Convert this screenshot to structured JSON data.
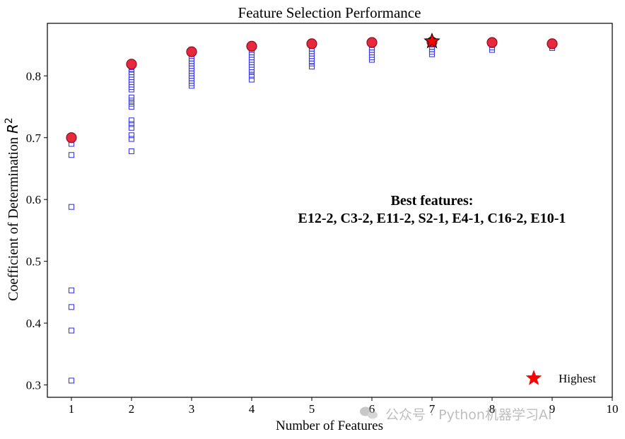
{
  "chart_data": {
    "type": "scatter",
    "title": "Feature Selection Performance",
    "xlabel": "Number of Features",
    "ylabel": "Coefficient of Determination R²",
    "ylabel_main": "Coefficient of Determination ",
    "ylabel_var": "R",
    "ylabel_sup": "2",
    "xlim": [
      0.6,
      10
    ],
    "ylim": [
      0.28,
      0.885
    ],
    "xticks": [
      1,
      2,
      3,
      4,
      5,
      6,
      7,
      8,
      9,
      10
    ],
    "yticks": [
      0.3,
      0.4,
      0.5,
      0.6,
      0.7,
      0.8
    ],
    "grid": false,
    "series": [
      {
        "marker": "hollow-square",
        "color": "#3b3bf0",
        "points": [
          [
            1,
            0.7
          ],
          [
            1,
            0.69
          ],
          [
            1,
            0.672
          ],
          [
            1,
            0.588
          ],
          [
            1,
            0.453
          ],
          [
            1,
            0.426
          ],
          [
            1,
            0.388
          ],
          [
            1,
            0.307
          ],
          [
            2,
            0.818
          ],
          [
            2,
            0.811
          ],
          [
            2,
            0.806
          ],
          [
            2,
            0.802
          ],
          [
            2,
            0.798
          ],
          [
            2,
            0.794
          ],
          [
            2,
            0.79
          ],
          [
            2,
            0.786
          ],
          [
            2,
            0.782
          ],
          [
            2,
            0.778
          ],
          [
            2,
            0.765
          ],
          [
            2,
            0.76
          ],
          [
            2,
            0.755
          ],
          [
            2,
            0.75
          ],
          [
            2,
            0.728
          ],
          [
            2,
            0.722
          ],
          [
            2,
            0.716
          ],
          [
            2,
            0.704
          ],
          [
            2,
            0.698
          ],
          [
            2,
            0.678
          ],
          [
            3,
            0.838
          ],
          [
            3,
            0.832
          ],
          [
            3,
            0.828
          ],
          [
            3,
            0.824
          ],
          [
            3,
            0.82
          ],
          [
            3,
            0.816
          ],
          [
            3,
            0.812
          ],
          [
            3,
            0.808
          ],
          [
            3,
            0.804
          ],
          [
            3,
            0.8
          ],
          [
            3,
            0.796
          ],
          [
            3,
            0.792
          ],
          [
            3,
            0.788
          ],
          [
            3,
            0.784
          ],
          [
            4,
            0.847
          ],
          [
            4,
            0.842
          ],
          [
            4,
            0.838
          ],
          [
            4,
            0.834
          ],
          [
            4,
            0.83
          ],
          [
            4,
            0.826
          ],
          [
            4,
            0.822
          ],
          [
            4,
            0.818
          ],
          [
            4,
            0.814
          ],
          [
            4,
            0.81
          ],
          [
            4,
            0.806
          ],
          [
            4,
            0.8
          ],
          [
            4,
            0.794
          ],
          [
            5,
            0.852
          ],
          [
            5,
            0.848
          ],
          [
            5,
            0.844
          ],
          [
            5,
            0.84
          ],
          [
            5,
            0.836
          ],
          [
            5,
            0.832
          ],
          [
            5,
            0.828
          ],
          [
            5,
            0.824
          ],
          [
            5,
            0.82
          ],
          [
            5,
            0.815
          ],
          [
            6,
            0.854
          ],
          [
            6,
            0.85
          ],
          [
            6,
            0.846
          ],
          [
            6,
            0.842
          ],
          [
            6,
            0.838
          ],
          [
            6,
            0.834
          ],
          [
            6,
            0.83
          ],
          [
            6,
            0.826
          ],
          [
            7,
            0.855
          ],
          [
            7,
            0.851
          ],
          [
            7,
            0.847
          ],
          [
            7,
            0.843
          ],
          [
            7,
            0.839
          ],
          [
            7,
            0.835
          ],
          [
            8,
            0.854
          ],
          [
            8,
            0.85
          ],
          [
            8,
            0.846
          ],
          [
            8,
            0.842
          ],
          [
            9,
            0.852
          ],
          [
            9,
            0.848
          ],
          [
            9,
            0.845
          ]
        ]
      },
      {
        "marker": "filled-circle",
        "color": "#e8283c",
        "edge": "#8a1020",
        "points": [
          [
            1,
            0.7
          ],
          [
            2,
            0.819
          ],
          [
            3,
            0.839
          ],
          [
            4,
            0.848
          ],
          [
            5,
            0.852
          ],
          [
            6,
            0.854
          ],
          [
            7,
            0.855
          ],
          [
            8,
            0.854
          ],
          [
            9,
            0.852
          ]
        ]
      }
    ],
    "highest": {
      "name": "Highest",
      "x": 7,
      "y": 0.856,
      "color": "#ff0000",
      "marker": "star"
    },
    "annotation": {
      "line1": "Best features:",
      "line2": "E12-2, C3-2, E11-2, S2-1, E4-1, C16-2, E10-1"
    },
    "legend": {
      "placement": "bottom-right",
      "label": "Highest"
    }
  },
  "watermark": {
    "icon": "wechat-icon",
    "text": "公众号 · Python机器学习AI"
  }
}
